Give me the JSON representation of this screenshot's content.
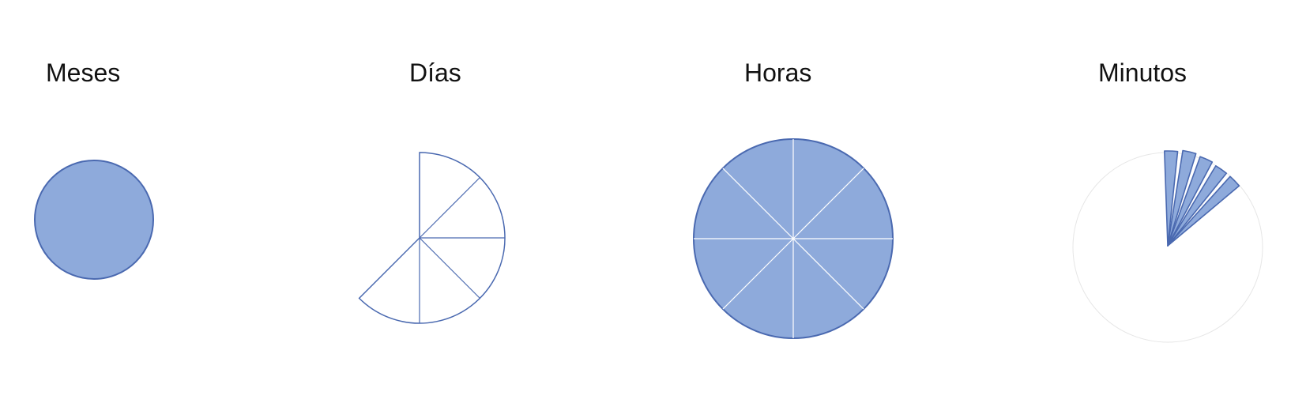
{
  "labels": {
    "meses": "Meses",
    "dias": "Días",
    "horas": "Horas",
    "minutos": "Minutos"
  },
  "colors": {
    "fill": "#8eaadb",
    "stroke": "#4a69b0",
    "divider": "#ffffff",
    "faint": "#e6e6e6",
    "text": "#111111"
  },
  "diagram_data": {
    "meses": {
      "filled": true
    },
    "dias": {
      "sectors_total": 8,
      "sectors_drawn": 5,
      "filled": false
    },
    "horas": {
      "sectors_total": 8,
      "filled": true
    },
    "minutos": {
      "wedges": 5,
      "filled": true
    }
  }
}
